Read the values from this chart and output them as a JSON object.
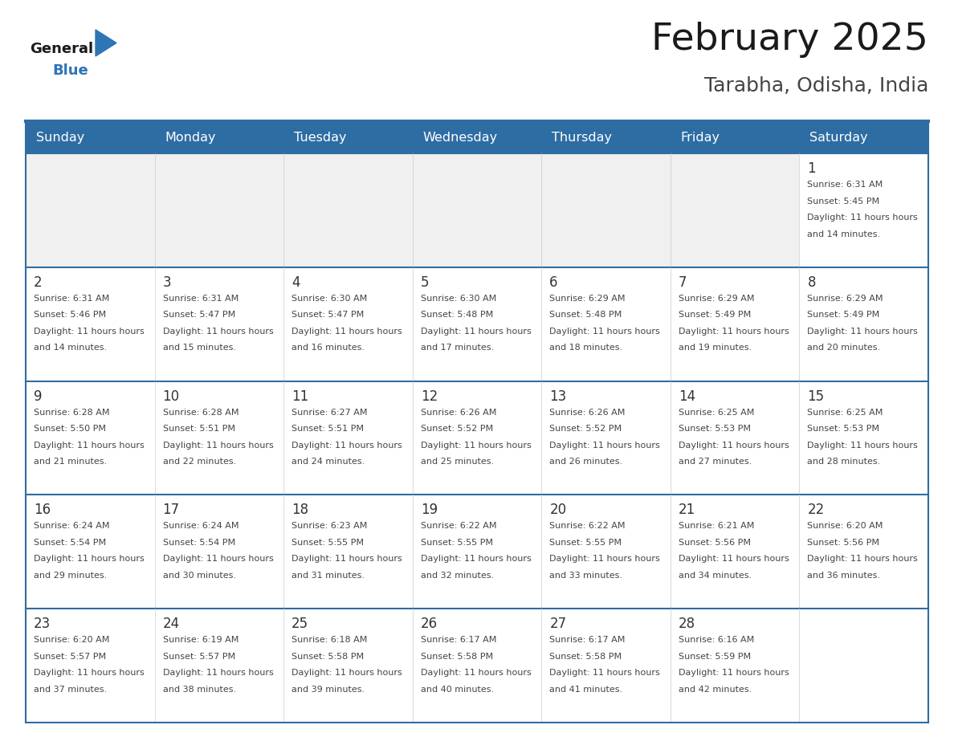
{
  "title": "February 2025",
  "subtitle": "Tarabha, Odisha, India",
  "days_of_week": [
    "Sunday",
    "Monday",
    "Tuesday",
    "Wednesday",
    "Thursday",
    "Friday",
    "Saturday"
  ],
  "header_bg": "#2e6da4",
  "header_text": "#ffffff",
  "cell_bg_light": "#ffffff",
  "cell_bg_empty": "#f0f0f0",
  "border_color": "#2e6da4",
  "day_num_color": "#333333",
  "text_color": "#444444",
  "logo_general_color": "#1a1a1a",
  "logo_blue_color": "#2e75b6",
  "calendar_data": [
    [
      null,
      null,
      null,
      null,
      null,
      null,
      {
        "day": 1,
        "sunrise": "6:31 AM",
        "sunset": "5:45 PM",
        "daylight": "11 hours and 14 minutes."
      }
    ],
    [
      {
        "day": 2,
        "sunrise": "6:31 AM",
        "sunset": "5:46 PM",
        "daylight": "11 hours and 14 minutes."
      },
      {
        "day": 3,
        "sunrise": "6:31 AM",
        "sunset": "5:47 PM",
        "daylight": "11 hours and 15 minutes."
      },
      {
        "day": 4,
        "sunrise": "6:30 AM",
        "sunset": "5:47 PM",
        "daylight": "11 hours and 16 minutes."
      },
      {
        "day": 5,
        "sunrise": "6:30 AM",
        "sunset": "5:48 PM",
        "daylight": "11 hours and 17 minutes."
      },
      {
        "day": 6,
        "sunrise": "6:29 AM",
        "sunset": "5:48 PM",
        "daylight": "11 hours and 18 minutes."
      },
      {
        "day": 7,
        "sunrise": "6:29 AM",
        "sunset": "5:49 PM",
        "daylight": "11 hours and 19 minutes."
      },
      {
        "day": 8,
        "sunrise": "6:29 AM",
        "sunset": "5:49 PM",
        "daylight": "11 hours and 20 minutes."
      }
    ],
    [
      {
        "day": 9,
        "sunrise": "6:28 AM",
        "sunset": "5:50 PM",
        "daylight": "11 hours and 21 minutes."
      },
      {
        "day": 10,
        "sunrise": "6:28 AM",
        "sunset": "5:51 PM",
        "daylight": "11 hours and 22 minutes."
      },
      {
        "day": 11,
        "sunrise": "6:27 AM",
        "sunset": "5:51 PM",
        "daylight": "11 hours and 24 minutes."
      },
      {
        "day": 12,
        "sunrise": "6:26 AM",
        "sunset": "5:52 PM",
        "daylight": "11 hours and 25 minutes."
      },
      {
        "day": 13,
        "sunrise": "6:26 AM",
        "sunset": "5:52 PM",
        "daylight": "11 hours and 26 minutes."
      },
      {
        "day": 14,
        "sunrise": "6:25 AM",
        "sunset": "5:53 PM",
        "daylight": "11 hours and 27 minutes."
      },
      {
        "day": 15,
        "sunrise": "6:25 AM",
        "sunset": "5:53 PM",
        "daylight": "11 hours and 28 minutes."
      }
    ],
    [
      {
        "day": 16,
        "sunrise": "6:24 AM",
        "sunset": "5:54 PM",
        "daylight": "11 hours and 29 minutes."
      },
      {
        "day": 17,
        "sunrise": "6:24 AM",
        "sunset": "5:54 PM",
        "daylight": "11 hours and 30 minutes."
      },
      {
        "day": 18,
        "sunrise": "6:23 AM",
        "sunset": "5:55 PM",
        "daylight": "11 hours and 31 minutes."
      },
      {
        "day": 19,
        "sunrise": "6:22 AM",
        "sunset": "5:55 PM",
        "daylight": "11 hours and 32 minutes."
      },
      {
        "day": 20,
        "sunrise": "6:22 AM",
        "sunset": "5:55 PM",
        "daylight": "11 hours and 33 minutes."
      },
      {
        "day": 21,
        "sunrise": "6:21 AM",
        "sunset": "5:56 PM",
        "daylight": "11 hours and 34 minutes."
      },
      {
        "day": 22,
        "sunrise": "6:20 AM",
        "sunset": "5:56 PM",
        "daylight": "11 hours and 36 minutes."
      }
    ],
    [
      {
        "day": 23,
        "sunrise": "6:20 AM",
        "sunset": "5:57 PM",
        "daylight": "11 hours and 37 minutes."
      },
      {
        "day": 24,
        "sunrise": "6:19 AM",
        "sunset": "5:57 PM",
        "daylight": "11 hours and 38 minutes."
      },
      {
        "day": 25,
        "sunrise": "6:18 AM",
        "sunset": "5:58 PM",
        "daylight": "11 hours and 39 minutes."
      },
      {
        "day": 26,
        "sunrise": "6:17 AM",
        "sunset": "5:58 PM",
        "daylight": "11 hours and 40 minutes."
      },
      {
        "day": 27,
        "sunrise": "6:17 AM",
        "sunset": "5:58 PM",
        "daylight": "11 hours and 41 minutes."
      },
      {
        "day": 28,
        "sunrise": "6:16 AM",
        "sunset": "5:59 PM",
        "daylight": "11 hours and 42 minutes."
      },
      null
    ]
  ]
}
